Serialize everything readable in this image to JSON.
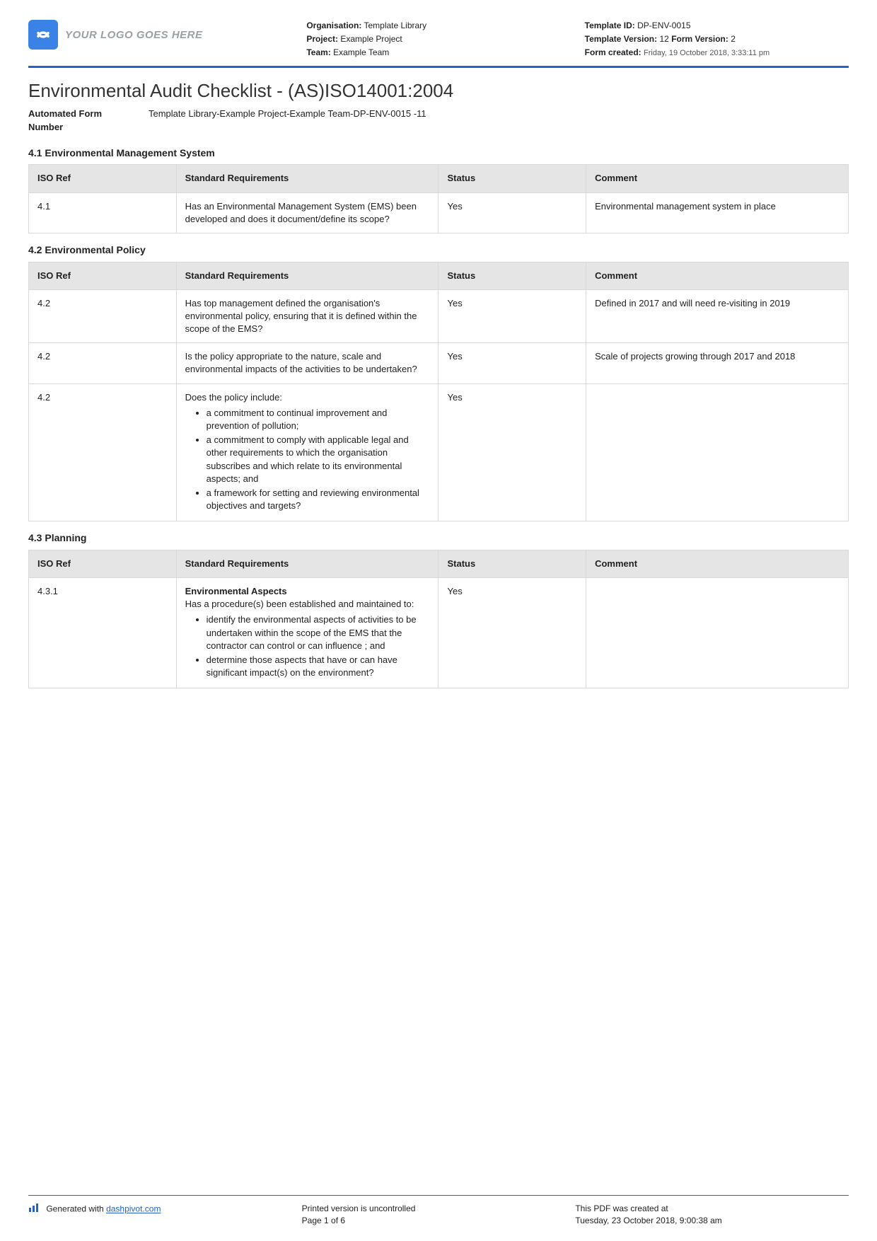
{
  "header": {
    "logo_placeholder": "YOUR LOGO GOES HERE",
    "organisation_label": "Organisation:",
    "organisation_value": "Template Library",
    "project_label": "Project:",
    "project_value": "Example Project",
    "team_label": "Team:",
    "team_value": "Example Team",
    "template_id_label": "Template ID:",
    "template_id_value": "DP-ENV-0015",
    "template_version_label": "Template Version:",
    "template_version_value": "12",
    "form_version_label": "Form Version:",
    "form_version_value": "2",
    "form_created_label": "Form created:",
    "form_created_value": "Friday, 19 October 2018, 3:33:11 pm"
  },
  "title": "Environmental Audit Checklist - (AS)ISO14001:2004",
  "form_number_label": "Automated Form Number",
  "form_number_value": "Template Library-Example Project-Example Team-DP-ENV-0015   -11",
  "columns": {
    "iso_ref": "ISO Ref",
    "requirements": "Standard Requirements",
    "status": "Status",
    "comment": "Comment"
  },
  "sections": [
    {
      "heading": "4.1 Environmental Management System",
      "rows": [
        {
          "ref": "4.1",
          "req_plain": "Has an Environmental Management System (EMS) been developed and does it document/define its scope?",
          "status": "Yes",
          "comment": "Environmental management system in place"
        }
      ]
    },
    {
      "heading": "4.2 Environmental Policy",
      "rows": [
        {
          "ref": "4.2",
          "req_plain": "Has top management defined the organisation's environmental policy, ensuring that it is defined within the scope of the EMS?",
          "status": "Yes",
          "comment": "Defined in 2017 and will need re-visiting in 2019"
        },
        {
          "ref": "4.2",
          "req_plain": "Is the policy appropriate to the nature, scale and environmental impacts of the activities to be undertaken?",
          "status": "Yes",
          "comment": "Scale of projects growing through 2017 and 2018"
        },
        {
          "ref": "4.2",
          "req_lead": "Does the policy include:",
          "req_bullets": [
            "a commitment to continual improvement and prevention of pollution;",
            "a commitment to comply with applicable legal and other requirements to which the organisation subscribes and which relate to its environmental aspects; and",
            "a framework for setting and reviewing environmental objectives and targets?"
          ],
          "status": "Yes",
          "comment": ""
        }
      ]
    },
    {
      "heading": "4.3 Planning",
      "rows": [
        {
          "ref": "4.3.1",
          "req_bold": "Environmental Aspects",
          "req_lead": "Has a procedure(s) been established and maintained to:",
          "req_bullets": [
            "identify the environmental aspects of activities to be undertaken within the scope of the EMS that the contractor can control or can influence ; and",
            "determine those aspects that have or can have significant impact(s) on the environment?"
          ],
          "status": "Yes",
          "comment": ""
        }
      ]
    }
  ],
  "footer": {
    "generated_prefix": "Generated with ",
    "generated_link": "dashpivot.com",
    "uncontrolled": "Printed version is uncontrolled",
    "page": "Page 1 of 6",
    "created_label": "This PDF was created at",
    "created_value": "Tuesday, 23 October 2018, 9:00:38 am"
  },
  "colors": {
    "accent": "#2563c9",
    "logo_bg": "#3b82e6",
    "header_bg": "#e5e5e5",
    "border": "#d9d9d9"
  }
}
